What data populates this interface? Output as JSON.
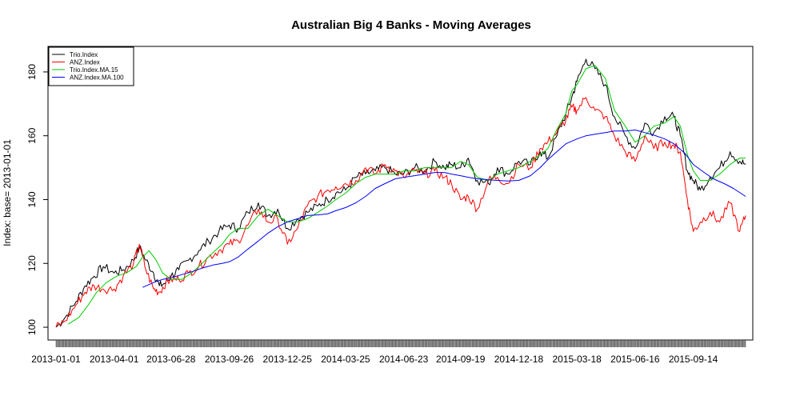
{
  "chart_data": {
    "type": "line",
    "title": "Australian Big 4 Banks - Moving Averages",
    "xlabel": "",
    "ylabel": "Index: base= 2013-01-01",
    "ylim": [
      96,
      188
    ],
    "yticks": [
      100,
      120,
      140,
      160,
      180
    ],
    "x_start": "2013-01-01",
    "x_end": "2015-12-04",
    "xticks": [
      "2013-01-01",
      "2013-04-01",
      "2013-06-28",
      "2013-09-26",
      "2013-12-25",
      "2014-03-25",
      "2014-06-23",
      "2014-09-19",
      "2014-12-18",
      "2015-03-18",
      "2015-06-16",
      "2015-09-14"
    ],
    "legend_position": "top-left",
    "series": [
      {
        "name": "Trio.Index",
        "color": "#000000",
        "x": [
          "2013-01-01",
          "2013-01-15",
          "2013-02-01",
          "2013-02-15",
          "2013-03-01",
          "2013-03-15",
          "2013-04-01",
          "2013-04-15",
          "2013-05-01",
          "2013-05-10",
          "2013-05-20",
          "2013-06-01",
          "2013-06-10",
          "2013-06-20",
          "2013-06-28",
          "2013-07-10",
          "2013-07-25",
          "2013-08-10",
          "2013-08-25",
          "2013-09-10",
          "2013-09-26",
          "2013-10-10",
          "2013-10-25",
          "2013-11-10",
          "2013-11-25",
          "2013-12-10",
          "2013-12-25",
          "2014-01-10",
          "2014-01-25",
          "2014-02-10",
          "2014-02-25",
          "2014-03-10",
          "2014-03-25",
          "2014-04-10",
          "2014-04-25",
          "2014-05-10",
          "2014-05-25",
          "2014-06-10",
          "2014-06-23",
          "2014-07-10",
          "2014-07-25",
          "2014-08-10",
          "2014-08-25",
          "2014-09-05",
          "2014-09-19",
          "2014-10-01",
          "2014-10-15",
          "2014-11-01",
          "2014-11-15",
          "2014-12-01",
          "2014-12-18",
          "2015-01-05",
          "2015-01-20",
          "2015-02-01",
          "2015-02-15",
          "2015-03-01",
          "2015-03-10",
          "2015-03-18",
          "2015-04-01",
          "2015-04-15",
          "2015-05-01",
          "2015-05-15",
          "2015-06-01",
          "2015-06-16",
          "2015-07-01",
          "2015-07-15",
          "2015-08-01",
          "2015-08-15",
          "2015-08-25",
          "2015-09-05",
          "2015-09-14",
          "2015-09-25",
          "2015-10-10",
          "2015-10-25",
          "2015-11-10",
          "2015-11-25",
          "2015-12-04"
        ],
        "values": [
          100,
          103,
          108,
          113,
          116,
          119,
          117,
          118,
          121,
          125,
          121,
          117,
          113,
          114,
          116,
          118,
          121,
          124,
          127,
          130,
          132,
          131,
          136,
          139,
          135,
          137,
          131,
          134,
          136,
          138,
          140,
          142,
          143,
          147,
          148,
          149,
          150,
          148,
          148,
          150,
          149,
          152,
          150,
          151,
          150,
          153,
          146,
          145,
          150,
          148,
          152,
          151,
          155,
          153,
          160,
          167,
          172,
          177,
          184,
          181,
          176,
          166,
          160,
          156,
          164,
          161,
          166,
          166,
          160,
          149,
          146,
          143,
          147,
          150,
          155,
          152,
          151
        ]
      },
      {
        "name": "ANZ.Index",
        "color": "#ff0000",
        "x": [
          "2013-01-01",
          "2013-01-15",
          "2013-02-01",
          "2013-02-15",
          "2013-03-01",
          "2013-03-15",
          "2013-04-01",
          "2013-04-15",
          "2013-05-01",
          "2013-05-10",
          "2013-05-20",
          "2013-06-01",
          "2013-06-10",
          "2013-06-20",
          "2013-06-28",
          "2013-07-10",
          "2013-07-25",
          "2013-08-10",
          "2013-08-25",
          "2013-09-10",
          "2013-09-26",
          "2013-10-10",
          "2013-10-25",
          "2013-11-10",
          "2013-11-25",
          "2013-12-10",
          "2013-12-25",
          "2014-01-10",
          "2014-01-25",
          "2014-02-10",
          "2014-02-25",
          "2014-03-10",
          "2014-03-25",
          "2014-04-10",
          "2014-04-25",
          "2014-05-10",
          "2014-05-25",
          "2014-06-10",
          "2014-06-23",
          "2014-07-10",
          "2014-07-25",
          "2014-08-10",
          "2014-08-25",
          "2014-09-05",
          "2014-09-19",
          "2014-10-01",
          "2014-10-15",
          "2014-11-01",
          "2014-11-15",
          "2014-12-01",
          "2014-12-18",
          "2015-01-05",
          "2015-01-20",
          "2015-02-01",
          "2015-02-15",
          "2015-03-01",
          "2015-03-10",
          "2015-03-18",
          "2015-04-01",
          "2015-04-15",
          "2015-05-01",
          "2015-05-15",
          "2015-06-01",
          "2015-06-16",
          "2015-07-01",
          "2015-07-15",
          "2015-08-01",
          "2015-08-15",
          "2015-08-25",
          "2015-09-05",
          "2015-09-14",
          "2015-09-25",
          "2015-10-10",
          "2015-10-25",
          "2015-11-10",
          "2015-11-25",
          "2015-12-04"
        ],
        "values": [
          100,
          102,
          107,
          111,
          113,
          112,
          112,
          116,
          120,
          126,
          118,
          112,
          111,
          114,
          115,
          115,
          117,
          119,
          122,
          124,
          126,
          127,
          132,
          137,
          133,
          134,
          126,
          131,
          138,
          141,
          143,
          144,
          145,
          146,
          150,
          148,
          151,
          149,
          147,
          149,
          148,
          149,
          147,
          145,
          140,
          141,
          137,
          146,
          147,
          145,
          151,
          150,
          156,
          158,
          161,
          165,
          169,
          168,
          172,
          168,
          166,
          160,
          155,
          152,
          160,
          156,
          158,
          157,
          155,
          140,
          130,
          133,
          136,
          133,
          139,
          130,
          135
        ]
      },
      {
        "name": "Trio.Index.MA.15",
        "color": "#00cc00",
        "x": [
          "2013-01-20",
          "2013-02-05",
          "2013-02-20",
          "2013-03-05",
          "2013-03-20",
          "2013-04-05",
          "2013-04-20",
          "2013-05-05",
          "2013-05-15",
          "2013-05-25",
          "2013-06-05",
          "2013-06-15",
          "2013-06-28",
          "2013-07-15",
          "2013-07-30",
          "2013-08-15",
          "2013-08-30",
          "2013-09-15",
          "2013-09-26",
          "2013-10-10",
          "2013-10-25",
          "2013-11-10",
          "2013-11-25",
          "2013-12-10",
          "2013-12-25",
          "2014-01-10",
          "2014-01-25",
          "2014-02-10",
          "2014-02-25",
          "2014-03-10",
          "2014-03-25",
          "2014-04-10",
          "2014-04-25",
          "2014-05-10",
          "2014-05-25",
          "2014-06-10",
          "2014-06-23",
          "2014-07-10",
          "2014-07-25",
          "2014-08-10",
          "2014-08-25",
          "2014-09-05",
          "2014-09-19",
          "2014-10-01",
          "2014-10-15",
          "2014-11-01",
          "2014-11-15",
          "2014-12-01",
          "2014-12-18",
          "2015-01-05",
          "2015-01-20",
          "2015-02-01",
          "2015-02-15",
          "2015-03-01",
          "2015-03-10",
          "2015-03-18",
          "2015-04-01",
          "2015-04-15",
          "2015-05-01",
          "2015-05-15",
          "2015-06-01",
          "2015-06-16",
          "2015-07-01",
          "2015-07-15",
          "2015-08-01",
          "2015-08-15",
          "2015-08-25",
          "2015-09-05",
          "2015-09-14",
          "2015-09-25",
          "2015-10-10",
          "2015-10-25",
          "2015-11-10",
          "2015-11-25",
          "2015-12-04"
        ],
        "values": [
          101,
          103,
          107,
          111,
          114,
          116,
          117,
          119,
          122,
          124,
          121,
          117,
          115,
          115,
          117,
          120,
          123,
          126,
          129,
          131,
          131,
          135,
          137,
          135,
          133,
          133,
          134,
          136,
          138,
          140,
          142,
          145,
          147,
          148,
          148,
          148,
          149,
          149,
          150,
          150,
          150,
          150,
          152,
          151,
          147,
          146,
          148,
          149,
          150,
          152,
          154,
          156,
          162,
          167,
          174,
          176,
          181,
          182,
          178,
          168,
          163,
          158,
          160,
          163,
          164,
          166,
          163,
          154,
          149,
          146,
          146,
          148,
          151,
          153,
          153
        ]
      },
      {
        "name": "ANZ.Index.MA.100",
        "color": "#0000ff",
        "x": [
          "2013-05-15",
          "2013-06-01",
          "2013-06-15",
          "2013-06-28",
          "2013-07-15",
          "2013-08-01",
          "2013-08-15",
          "2013-09-01",
          "2013-09-15",
          "2013-09-26",
          "2013-10-10",
          "2013-10-25",
          "2013-11-10",
          "2013-11-25",
          "2013-12-10",
          "2013-12-25",
          "2014-01-10",
          "2014-01-25",
          "2014-02-10",
          "2014-02-25",
          "2014-03-10",
          "2014-03-25",
          "2014-04-10",
          "2014-04-25",
          "2014-05-10",
          "2014-05-25",
          "2014-06-10",
          "2014-06-23",
          "2014-07-10",
          "2014-07-25",
          "2014-08-10",
          "2014-08-25",
          "2014-09-05",
          "2014-09-19",
          "2014-10-01",
          "2014-10-15",
          "2014-11-01",
          "2014-11-15",
          "2014-12-01",
          "2014-12-18",
          "2015-01-05",
          "2015-01-20",
          "2015-02-01",
          "2015-02-15",
          "2015-03-01",
          "2015-03-18",
          "2015-04-01",
          "2015-04-15",
          "2015-05-01",
          "2015-05-15",
          "2015-06-01",
          "2015-06-16",
          "2015-07-01",
          "2015-07-15",
          "2015-08-01",
          "2015-08-15",
          "2015-09-01",
          "2015-09-14",
          "2015-10-01",
          "2015-10-15",
          "2015-11-01",
          "2015-11-15",
          "2015-12-04"
        ],
        "values": [
          112.5,
          114,
          115,
          115.5,
          116.5,
          117.5,
          118.5,
          119.5,
          120,
          120.5,
          122,
          124.5,
          127,
          129.5,
          131.5,
          133,
          134,
          135,
          135.2,
          135.5,
          136.5,
          137.5,
          139,
          141,
          143.5,
          145,
          146.5,
          147,
          147.5,
          148,
          148.5,
          148.5,
          148,
          147.5,
          147,
          146.5,
          146.2,
          146,
          145.8,
          146,
          147.5,
          150,
          152.5,
          155,
          157.5,
          159,
          160,
          160.5,
          161,
          161.5,
          161.5,
          161.8,
          161,
          160.2,
          159,
          157.5,
          154.5,
          151,
          148.5,
          146.5,
          145,
          143.5,
          141
        ]
      }
    ]
  }
}
